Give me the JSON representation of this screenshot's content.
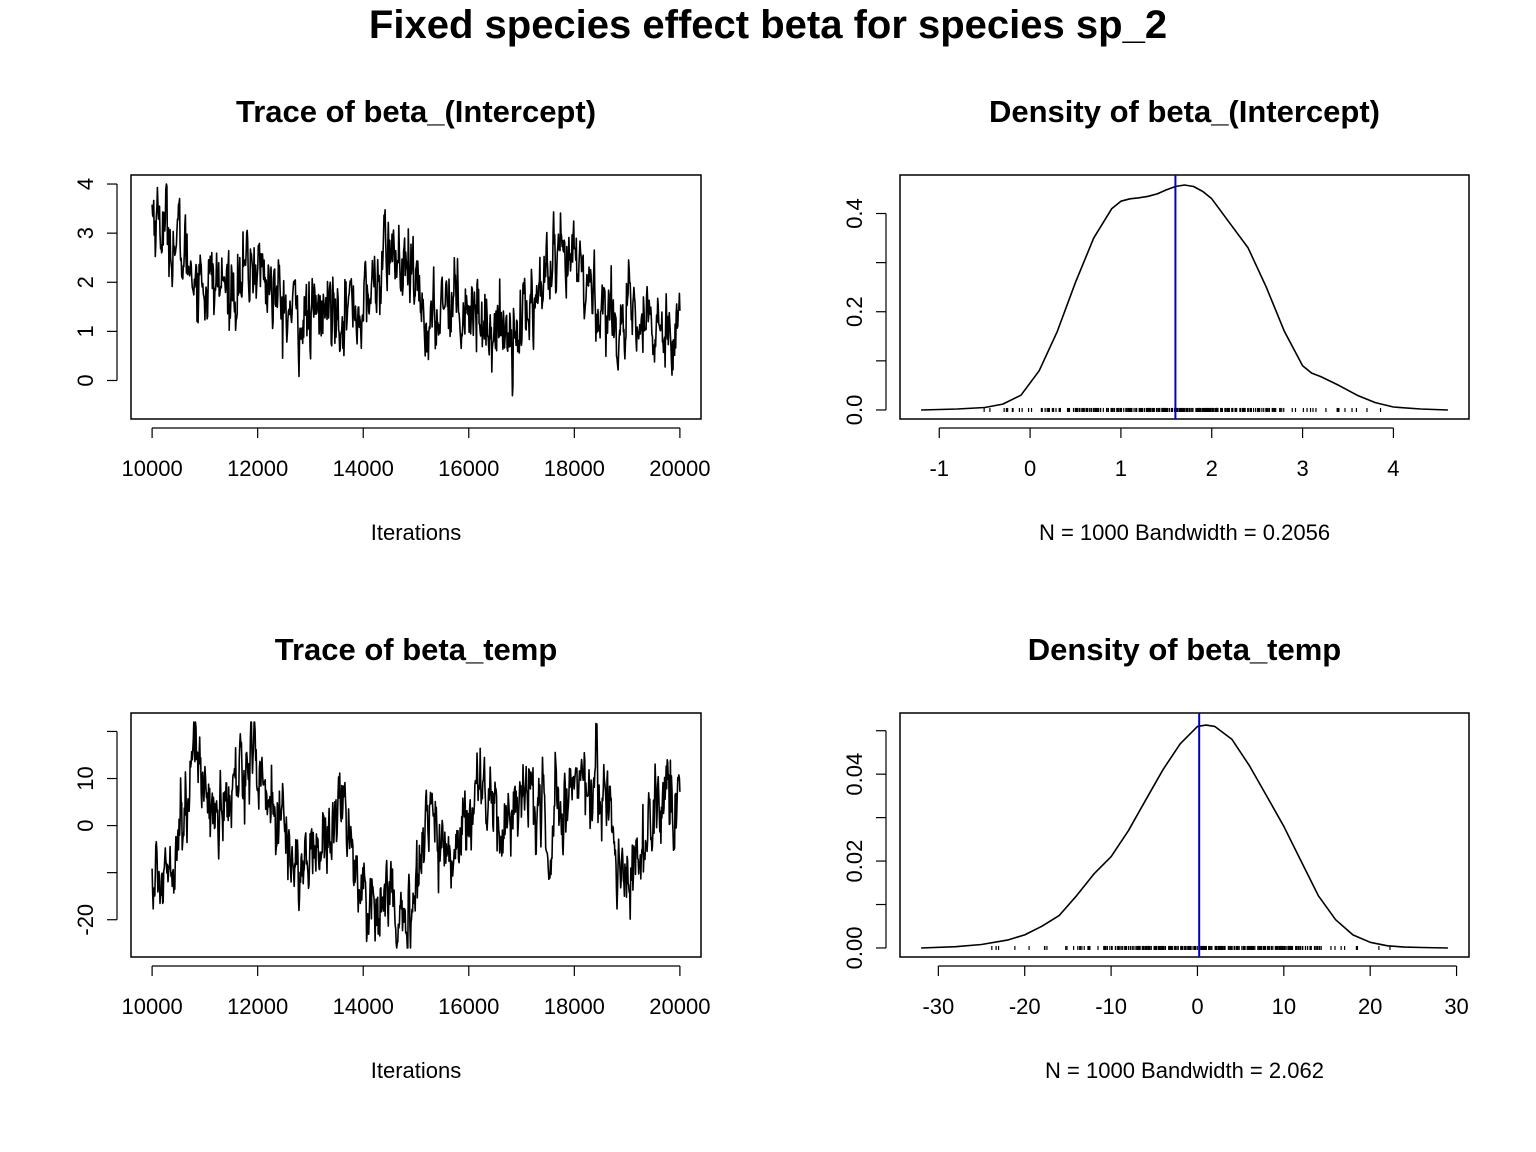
{
  "title": "Fixed species effect beta for species sp_2",
  "colors": {
    "line": "#000000",
    "mean_line": "#0000cc",
    "frame": "#000000"
  },
  "chart_data": [
    {
      "type": "line",
      "title": "Trace of beta_(Intercept)",
      "xlabel": "Iterations",
      "xlim": [
        10000,
        20000
      ],
      "ylim": [
        -0.6,
        4.0
      ],
      "xticks": [
        10000,
        12000,
        14000,
        16000,
        18000,
        20000
      ],
      "xtick_labels": [
        "10000",
        "12000",
        "14000",
        "16000",
        "18000",
        "20000"
      ],
      "yticks": [
        0,
        1,
        2,
        3,
        4
      ],
      "ytick_labels": [
        "0",
        "1",
        "2",
        "3",
        "4"
      ],
      "anchor_x": [
        10000,
        10500,
        11000,
        11500,
        12000,
        12500,
        13000,
        13500,
        14000,
        14500,
        15000,
        15300,
        15500,
        16000,
        16500,
        17000,
        17500,
        18000,
        18500,
        19000,
        19500,
        20000
      ],
      "anchor_y": [
        3.5,
        2.7,
        2.0,
        1.9,
        2.4,
        1.4,
        1.2,
        1.6,
        1.4,
        2.7,
        1.8,
        0.9,
        1.8,
        1.6,
        1.0,
        1.2,
        2.1,
        2.4,
        1.5,
        1.1,
        1.0,
        1.3
      ]
    },
    {
      "type": "area",
      "title": "Density of beta_(Intercept)",
      "xlabel": "N = 1000   Bandwidth = 0.2056",
      "xlim": [
        -1.2,
        4.6
      ],
      "ylim": [
        0,
        0.46
      ],
      "xticks": [
        -1,
        0,
        1,
        2,
        3,
        4
      ],
      "xtick_labels": [
        "-1",
        "0",
        "1",
        "2",
        "3",
        "4"
      ],
      "yticks": [
        0.0,
        0.1,
        0.2,
        0.3,
        0.4
      ],
      "ytick_labels": [
        "0.0",
        "",
        "0.2",
        "",
        "0.4"
      ],
      "x": [
        -1.2,
        -0.8,
        -0.5,
        -0.3,
        -0.1,
        0.1,
        0.3,
        0.5,
        0.7,
        0.9,
        1.0,
        1.1,
        1.2,
        1.3,
        1.4,
        1.5,
        1.6,
        1.7,
        1.8,
        1.9,
        2.0,
        2.2,
        2.4,
        2.6,
        2.8,
        3.0,
        3.1,
        3.2,
        3.4,
        3.6,
        3.8,
        4.0,
        4.3,
        4.6
      ],
      "y": [
        0.0,
        0.002,
        0.005,
        0.012,
        0.03,
        0.08,
        0.16,
        0.26,
        0.35,
        0.41,
        0.425,
        0.43,
        0.432,
        0.435,
        0.44,
        0.448,
        0.455,
        0.458,
        0.455,
        0.445,
        0.43,
        0.38,
        0.33,
        0.25,
        0.16,
        0.09,
        0.075,
        0.068,
        0.05,
        0.03,
        0.015,
        0.006,
        0.002,
        0.0
      ],
      "mean": 1.6,
      "rug_range": [
        -0.6,
        3.95
      ]
    },
    {
      "type": "line",
      "title": "Trace of beta_temp",
      "xlabel": "Iterations",
      "xlim": [
        10000,
        20000
      ],
      "ylim": [
        -26,
        22
      ],
      "xticks": [
        10000,
        12000,
        14000,
        16000,
        18000,
        20000
      ],
      "xtick_labels": [
        "10000",
        "12000",
        "14000",
        "16000",
        "18000",
        "20000"
      ],
      "yticks": [
        -20,
        -10,
        0,
        10,
        20
      ],
      "ytick_labels": [
        "-20",
        "",
        "0",
        "10",
        ""
      ],
      "anchor_x": [
        10000,
        10100,
        10500,
        10850,
        11200,
        11500,
        11850,
        12200,
        12800,
        13200,
        13600,
        14100,
        14400,
        14850,
        15200,
        15600,
        16200,
        16600,
        17000,
        17500,
        18000,
        18200,
        18600,
        19000,
        19500,
        20000
      ],
      "anchor_y": [
        -10,
        -14,
        0,
        15,
        2,
        5,
        17,
        6,
        -10,
        -3,
        5,
        -20,
        -10,
        -26,
        5,
        -8,
        10,
        -2,
        8,
        0,
        8,
        12,
        5,
        -12,
        3,
        2
      ]
    },
    {
      "type": "area",
      "title": "Density of beta_temp",
      "xlabel": "N = 1000   Bandwidth = 2.062",
      "xlim": [
        -32,
        29
      ],
      "ylim": [
        0,
        0.052
      ],
      "xticks": [
        -30,
        -20,
        -10,
        0,
        10,
        20,
        30
      ],
      "xtick_labels": [
        "-30",
        "-20",
        "-10",
        "0",
        "10",
        "20",
        "30"
      ],
      "yticks": [
        0.0,
        0.01,
        0.02,
        0.03,
        0.04,
        0.05
      ],
      "ytick_labels": [
        "0.00",
        "",
        "0.02",
        "",
        "0.04",
        ""
      ],
      "x": [
        -32,
        -28,
        -25,
        -22,
        -20,
        -18,
        -16,
        -14,
        -12,
        -10,
        -8,
        -6,
        -4,
        -2,
        0,
        1,
        2,
        4,
        6,
        8,
        10,
        12,
        14,
        16,
        18,
        20,
        22,
        24,
        26,
        29
      ],
      "y": [
        0.0,
        0.0003,
        0.0008,
        0.0018,
        0.003,
        0.005,
        0.0075,
        0.012,
        0.017,
        0.021,
        0.027,
        0.034,
        0.041,
        0.047,
        0.051,
        0.0513,
        0.051,
        0.048,
        0.042,
        0.035,
        0.028,
        0.02,
        0.012,
        0.0065,
        0.003,
        0.0013,
        0.0005,
        0.0002,
        0.0001,
        0.0
      ],
      "mean": 0.2,
      "rug_range": [
        -26,
        22.5
      ]
    }
  ]
}
